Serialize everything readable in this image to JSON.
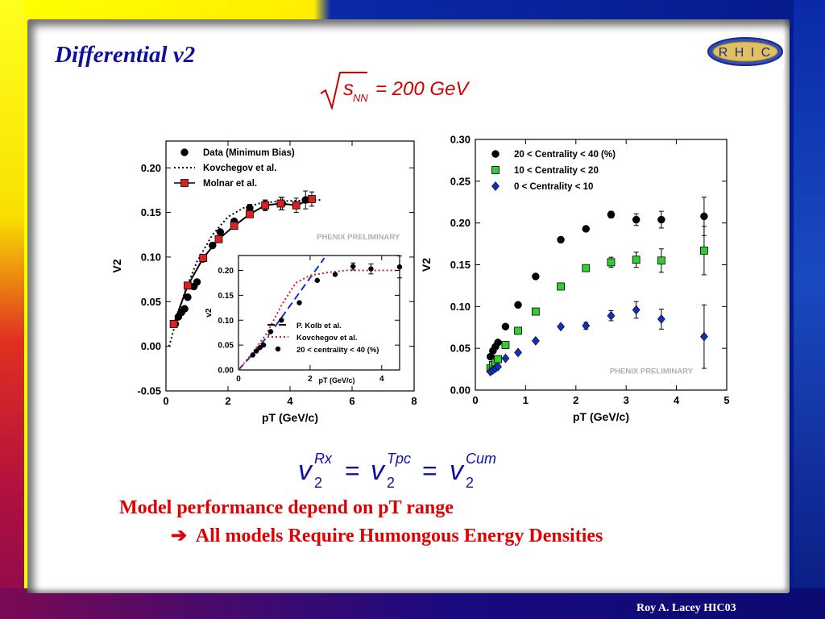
{
  "slide": {
    "title": "Differential v2",
    "logo_text": "R H I C",
    "formula_top": {
      "s_symbol": "s",
      "s_sub": "NN",
      "rhs": "= 200 GeV"
    },
    "equation": {
      "v": "v",
      "sub": "2",
      "sup1": "Rx",
      "sup2": "Tpc",
      "sup3": "Cum",
      "eq": "="
    },
    "bullet1": "Model performance depend on pT range",
    "bullet2_arrow": "➔",
    "bullet2": "All models Require Humongous Energy Densities",
    "footer": "Roy A. Lacey HIC03"
  },
  "chart_data": [
    {
      "type": "scatter",
      "xlabel": "pT (GeV/c)",
      "ylabel": "V2",
      "xlim": [
        0,
        8
      ],
      "ylim": [
        -0.05,
        0.23
      ],
      "xticks": [
        "0",
        "2",
        "4",
        "6",
        "8"
      ],
      "yticks": [
        "-0.05",
        "0.00",
        "0.05",
        "0.10",
        "0.15",
        "0.20"
      ],
      "watermark": "PHENIX PRELIMINARY",
      "legend_position": "top-left",
      "series": [
        {
          "name": "Data (Minimum Bias)",
          "marker": "circle",
          "color": "#000000",
          "x": [
            0.3,
            0.4,
            0.5,
            0.6,
            0.7,
            0.9,
            1.0,
            1.2,
            1.5,
            1.75,
            2.2,
            2.7,
            3.2,
            3.75,
            4.5
          ],
          "y": [
            0.025,
            0.033,
            0.038,
            0.042,
            0.055,
            0.067,
            0.072,
            0.098,
            0.113,
            0.128,
            0.14,
            0.155,
            0.158,
            0.16,
            0.164
          ],
          "yerr": [
            0,
            0,
            0,
            0,
            0,
            0,
            0,
            0,
            0,
            0,
            0,
            0.004,
            0.006,
            0.007,
            0.01
          ]
        },
        {
          "name": "Kovchegov et al.",
          "line": "dotted",
          "color": "#000000",
          "x": [
            0.1,
            0.3,
            0.6,
            1.0,
            1.5,
            2.0,
            2.5,
            3.0,
            3.5,
            4.0,
            5.0
          ],
          "y": [
            0.0,
            0.025,
            0.06,
            0.095,
            0.125,
            0.145,
            0.155,
            0.16,
            0.162,
            0.163,
            0.164
          ]
        },
        {
          "name": "Molnar et al.",
          "marker": "square",
          "line": "solid",
          "color": "#e02020",
          "x": [
            0.25,
            0.7,
            1.2,
            1.7,
            2.2,
            2.7,
            3.2,
            3.7,
            4.2,
            4.7
          ],
          "y": [
            0.025,
            0.068,
            0.099,
            0.12,
            0.135,
            0.148,
            0.158,
            0.16,
            0.158,
            0.165
          ],
          "yerr": [
            0,
            0,
            0,
            0,
            0,
            0,
            0.005,
            0.007,
            0.008,
            0.008
          ]
        }
      ]
    },
    {
      "type": "scatter",
      "inset": true,
      "xlabel": "pT (GeV/c)",
      "ylabel": "v2",
      "xlim": [
        0,
        4.5
      ],
      "ylim": [
        0,
        0.23
      ],
      "xticks": [
        "0",
        "2",
        "4"
      ],
      "yticks": [
        "0.00",
        "0.05",
        "0.10",
        "0.15",
        "0.20"
      ],
      "legend_position": "bottom-right",
      "series": [
        {
          "name": "P. Kolb et al.",
          "line": "dashed",
          "color": "#1030d0",
          "x": [
            0.0,
            0.5,
            1.0,
            1.5,
            2.0,
            2.4
          ],
          "y": [
            0.0,
            0.04,
            0.085,
            0.135,
            0.185,
            0.225
          ]
        },
        {
          "name": "Kovchegov et al.",
          "line": "dotted",
          "color": "#d02020",
          "x": [
            0.0,
            0.4,
            0.8,
            1.2,
            1.6,
            2.0,
            2.5,
            3.0,
            3.5,
            4.0,
            4.4
          ],
          "y": [
            0.0,
            0.035,
            0.075,
            0.13,
            0.175,
            0.19,
            0.196,
            0.2,
            0.2,
            0.2,
            0.2
          ]
        },
        {
          "name": "20 < centrality < 40 (%)",
          "marker": "circle",
          "color": "#000000",
          "x": [
            0.4,
            0.5,
            0.6,
            0.7,
            0.9,
            1.2,
            1.7,
            2.2,
            2.7,
            3.2,
            3.7,
            4.5
          ],
          "y": [
            0.03,
            0.038,
            0.045,
            0.05,
            0.077,
            0.1,
            0.135,
            0.18,
            0.192,
            0.208,
            0.203,
            0.207
          ],
          "yerr": [
            0,
            0,
            0,
            0,
            0,
            0,
            0,
            0,
            0,
            0.007,
            0.01,
            0.022
          ]
        }
      ]
    },
    {
      "type": "scatter",
      "xlabel": "pT (GeV/c)",
      "ylabel": "V2",
      "xlim": [
        0,
        5
      ],
      "ylim": [
        0,
        0.3
      ],
      "xticks": [
        "0",
        "1",
        "2",
        "3",
        "4",
        "5"
      ],
      "yticks": [
        "0.00",
        "0.05",
        "0.10",
        "0.15",
        "0.20",
        "0.25",
        "0.30"
      ],
      "watermark": "PHENIX PRELIMINARY",
      "legend_position": "top-left",
      "series": [
        {
          "name": "20 < Centrality < 40 (%)",
          "marker": "circle",
          "color": "#000000",
          "x": [
            0.3,
            0.35,
            0.4,
            0.45,
            0.6,
            0.85,
            1.2,
            1.7,
            2.2,
            2.7,
            3.2,
            3.7,
            4.55
          ],
          "y": [
            0.04,
            0.047,
            0.052,
            0.057,
            0.076,
            0.102,
            0.136,
            0.18,
            0.193,
            0.21,
            0.204,
            0.204,
            0.208
          ],
          "yerr": [
            0,
            0,
            0,
            0,
            0,
            0,
            0,
            0,
            0.003,
            0.004,
            0.007,
            0.01,
            0.023
          ]
        },
        {
          "name": "10 < Centrality < 20",
          "marker": "square",
          "color": "#33cc33",
          "x": [
            0.3,
            0.35,
            0.4,
            0.45,
            0.6,
            0.85,
            1.2,
            1.7,
            2.2,
            2.7,
            3.2,
            3.7,
            4.55
          ],
          "y": [
            0.026,
            0.03,
            0.033,
            0.037,
            0.054,
            0.071,
            0.094,
            0.124,
            0.146,
            0.153,
            0.156,
            0.155,
            0.167
          ],
          "yerr": [
            0,
            0,
            0,
            0,
            0,
            0,
            0,
            0,
            0,
            0.006,
            0.009,
            0.014,
            0.029
          ]
        },
        {
          "name": "0 < Centrality < 10",
          "marker": "diamond",
          "color": "#1030c0",
          "x": [
            0.3,
            0.35,
            0.4,
            0.45,
            0.6,
            0.85,
            1.2,
            1.7,
            2.2,
            2.7,
            3.2,
            3.7,
            4.55
          ],
          "y": [
            0.022,
            0.024,
            0.026,
            0.028,
            0.038,
            0.045,
            0.059,
            0.076,
            0.077,
            0.089,
            0.096,
            0.085,
            0.064
          ],
          "yerr": [
            0,
            0,
            0,
            0,
            0,
            0,
            0,
            0,
            0.004,
            0.006,
            0.01,
            0.012,
            0.038
          ]
        }
      ]
    }
  ]
}
